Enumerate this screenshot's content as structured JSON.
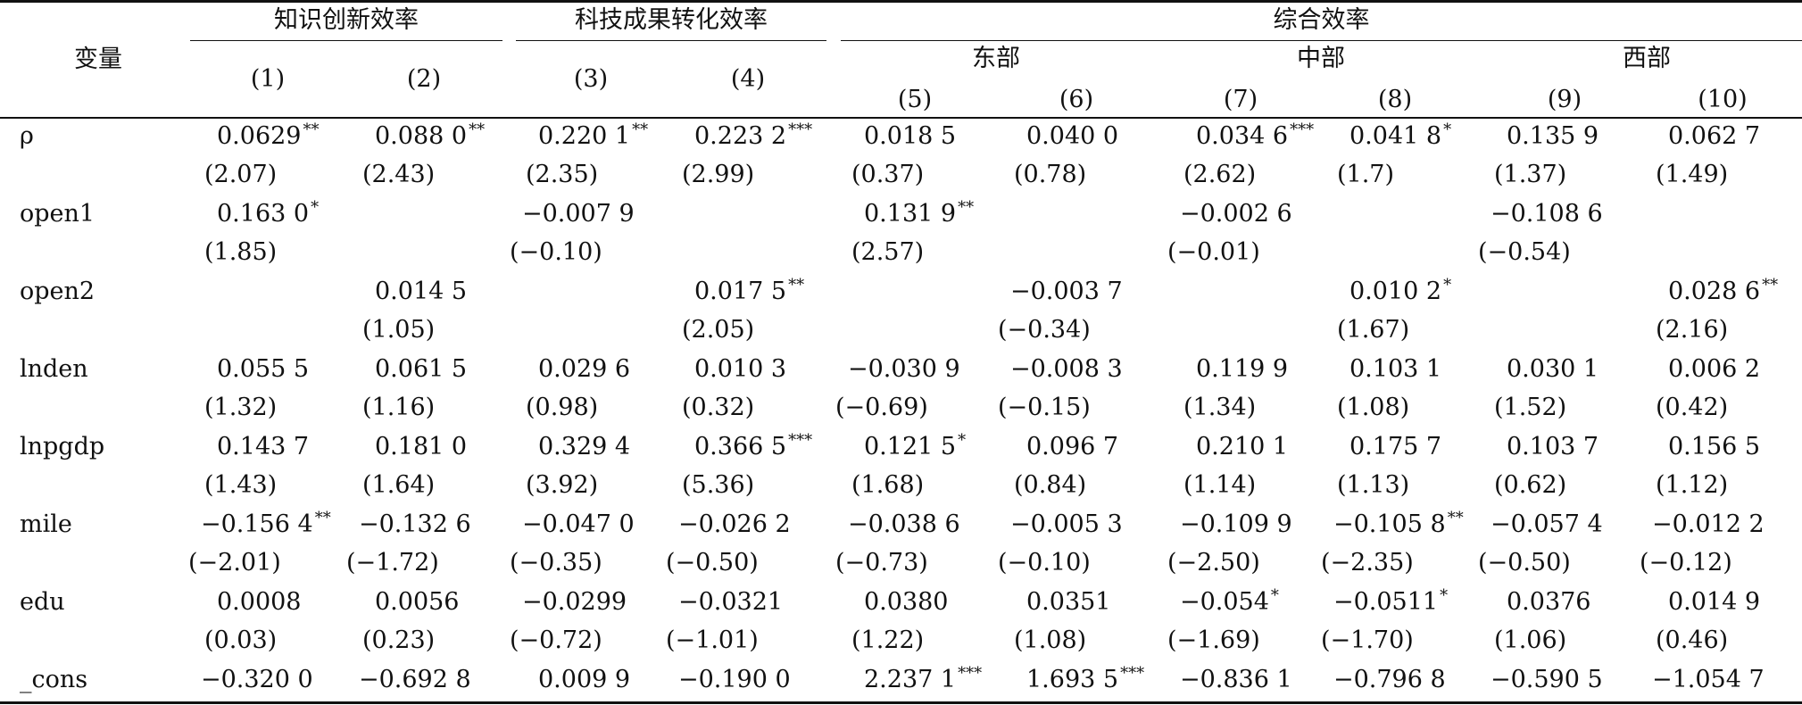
{
  "header": {
    "variable": "变量",
    "groups": [
      "知识创新效率",
      "科技成果转化效率",
      "综合效率"
    ],
    "regions": [
      "东部",
      "中部",
      "西部"
    ],
    "columns": [
      "(1)",
      "(2)",
      "(3)",
      "(4)",
      "(5)",
      "(6)",
      "(7)",
      "(8)",
      "(9)",
      "(10)"
    ]
  },
  "rows": [
    {
      "label": "ρ",
      "coef": [
        "0.0629",
        "0.088 0",
        "0.220 1",
        "0.223 2",
        "0.018 5",
        "0.040 0",
        "0.034 6",
        "0.041 8",
        "0.135 9",
        "0.062 7"
      ],
      "stars": [
        "**",
        "**",
        "**",
        "***",
        "",
        "",
        "***",
        "*",
        "",
        ""
      ],
      "t": [
        "(2.07)",
        "(2.43)",
        "(2.35)",
        "(2.99)",
        "(0.37)",
        "(0.78)",
        "(2.62)",
        "(1.7)",
        "(1.37)",
        "(1.49)"
      ]
    },
    {
      "label": "open1",
      "coef": [
        "0.163 0",
        "",
        "−0.007 9",
        "",
        "0.131 9",
        "",
        "−0.002 6",
        "",
        "−0.108 6",
        ""
      ],
      "stars": [
        "*",
        "",
        "",
        "",
        "**",
        "",
        "",
        "",
        "",
        ""
      ],
      "t": [
        "(1.85)",
        "",
        "(−0.10)",
        "",
        "(2.57)",
        "",
        "(−0.01)",
        "",
        "(−0.54)",
        ""
      ]
    },
    {
      "label": "open2",
      "coef": [
        "",
        "0.014 5",
        "",
        "0.017 5",
        "",
        "−0.003 7",
        "",
        "0.010 2",
        "",
        "0.028 6"
      ],
      "stars": [
        "",
        "",
        "",
        "**",
        "",
        "",
        "",
        "*",
        "",
        "**"
      ],
      "t": [
        "",
        "(1.05)",
        "",
        "(2.05)",
        "",
        "(−0.34)",
        "",
        "(1.67)",
        "",
        "(2.16)"
      ]
    },
    {
      "label": "lnden",
      "coef": [
        "0.055 5",
        "0.061 5",
        "0.029 6",
        "0.010 3",
        "−0.030 9",
        "−0.008 3",
        "0.119 9",
        "0.103 1",
        "0.030 1",
        "0.006 2"
      ],
      "stars": [
        "",
        "",
        "",
        "",
        "",
        "",
        "",
        "",
        "",
        ""
      ],
      "t": [
        "(1.32)",
        "(1.16)",
        "(0.98)",
        "(0.32)",
        "(−0.69)",
        "(−0.15)",
        "(1.34)",
        "(1.08)",
        "(1.52)",
        "(0.42)"
      ]
    },
    {
      "label": "lnpgdp",
      "coef": [
        "0.143 7",
        "0.181 0",
        "0.329 4",
        "0.366 5",
        "0.121 5",
        "0.096 7",
        "0.210 1",
        "0.175 7",
        "0.103 7",
        "0.156 5"
      ],
      "stars": [
        "",
        "",
        "",
        "***",
        "*",
        "",
        "",
        "",
        "",
        ""
      ],
      "t": [
        "(1.43)",
        "(1.64)",
        "(3.92)",
        "(5.36)",
        "(1.68)",
        "(0.84)",
        "(1.14)",
        "(1.13)",
        "(0.62)",
        "(1.12)"
      ]
    },
    {
      "label": "mile",
      "coef": [
        "−0.156 4",
        "−0.132 6",
        "−0.047 0",
        "−0.026 2",
        "−0.038 6",
        "−0.005 3",
        "−0.109 9",
        "−0.105 8",
        "−0.057 4",
        "−0.012 2"
      ],
      "stars": [
        "**",
        "",
        "",
        "",
        "",
        "",
        "",
        "**",
        "",
        ""
      ],
      "t": [
        "(−2.01)",
        "(−1.72)",
        "(−0.35)",
        "(−0.50)",
        "(−0.73)",
        "(−0.10)",
        "(−2.50)",
        "(−2.35)",
        "(−0.50)",
        "(−0.12)"
      ]
    },
    {
      "label": "edu",
      "coef": [
        "0.0008",
        "0.0056",
        "−0.0299",
        "−0.0321",
        "0.0380",
        "0.0351",
        "−0.054",
        "−0.0511",
        "0.0376",
        "0.014 9"
      ],
      "stars": [
        "",
        "",
        "",
        "",
        "",
        "",
        "*",
        "*",
        "",
        ""
      ],
      "t": [
        "(0.03)",
        "(0.23)",
        "(−0.72)",
        "(−1.01)",
        "(1.22)",
        "(1.08)",
        "(−1.69)",
        "(−1.70)",
        "(1.06)",
        "(0.46)"
      ]
    },
    {
      "label": "_cons",
      "coef": [
        "−0.320 0",
        "−0.692 8",
        "0.009 9",
        "−0.190 0",
        "2.237 1",
        "1.693 5",
        "−0.836 1",
        "−0.796 8",
        "−0.590 5",
        "−1.054 7"
      ],
      "stars": [
        "",
        "",
        "",
        "",
        "***",
        "***",
        "",
        "",
        "",
        ""
      ],
      "t": [
        "",
        "",
        "",
        "",
        "",
        "",
        "",
        "",
        "",
        ""
      ]
    }
  ]
}
